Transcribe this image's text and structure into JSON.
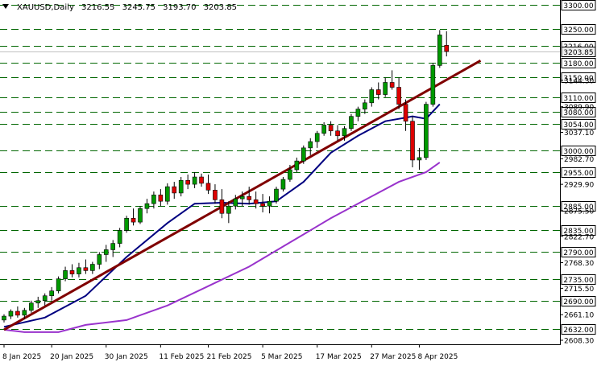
{
  "header": {
    "symbol": "XAUUSD,Daily",
    "open": "3216.55",
    "high": "3245.75",
    "low": "3193.70",
    "close": "3203.85"
  },
  "colors": {
    "bull": "#009900",
    "bear": "#dd0000",
    "ma_fast": "#000080",
    "ma_slow": "#9933cc",
    "trendline": "#800000",
    "level_line": "#006600",
    "grid": "#c0c0c0",
    "label_bg": "#ffffff"
  },
  "chart_data": {
    "type": "candlestick",
    "ylim": [
      2600,
      3310
    ],
    "y_ticks": [
      "2608.30",
      "2661.10",
      "2715.50",
      "2768.30",
      "2822.70",
      "2875.50",
      "2929.90",
      "2982.70",
      "3037.10",
      "3089.90",
      "3144.30"
    ],
    "level_labels": [
      "3300.00",
      "3250.00",
      "3216.00",
      "3180.00",
      "3150.00",
      "3110.00",
      "3080.00",
      "3054.00",
      "3000.00",
      "2955.00",
      "2885.00",
      "2835.00",
      "2790.00",
      "2735.00",
      "2690.00",
      "2632.00"
    ],
    "level_values": [
      3300,
      3250,
      3216,
      3180,
      3150,
      3110,
      3080,
      3054,
      3000,
      2955,
      2885,
      2835,
      2790,
      2735,
      2690,
      2632
    ],
    "current_price": "3203.85",
    "current_value": 3203.85,
    "x_labels": [
      {
        "i": 0,
        "text": "8 Jan 2025"
      },
      {
        "i": 7,
        "text": "20 Jan 2025"
      },
      {
        "i": 15,
        "text": "30 Jan 2025"
      },
      {
        "i": 23,
        "text": "11 Feb 2025"
      },
      {
        "i": 30,
        "text": "21 Feb 2025"
      },
      {
        "i": 38,
        "text": "5 Mar 2025"
      },
      {
        "i": 46,
        "text": "17 Mar 2025"
      },
      {
        "i": 54,
        "text": "27 Mar 2025"
      },
      {
        "i": 61,
        "text": "8 Apr 2025"
      }
    ],
    "candles": [
      [
        2650,
        2662,
        2645,
        2658
      ],
      [
        2658,
        2672,
        2652,
        2668
      ],
      [
        2668,
        2678,
        2655,
        2660
      ],
      [
        2660,
        2675,
        2652,
        2670
      ],
      [
        2670,
        2690,
        2665,
        2685
      ],
      [
        2685,
        2698,
        2675,
        2690
      ],
      [
        2690,
        2705,
        2680,
        2700
      ],
      [
        2700,
        2718,
        2690,
        2710
      ],
      [
        2710,
        2740,
        2705,
        2735
      ],
      [
        2735,
        2760,
        2730,
        2752
      ],
      [
        2752,
        2765,
        2738,
        2745
      ],
      [
        2745,
        2768,
        2738,
        2758
      ],
      [
        2758,
        2775,
        2745,
        2752
      ],
      [
        2752,
        2770,
        2745,
        2765
      ],
      [
        2765,
        2790,
        2755,
        2785
      ],
      [
        2785,
        2805,
        2770,
        2795
      ],
      [
        2795,
        2815,
        2780,
        2808
      ],
      [
        2808,
        2840,
        2800,
        2835
      ],
      [
        2835,
        2865,
        2830,
        2860
      ],
      [
        2860,
        2880,
        2845,
        2852
      ],
      [
        2852,
        2885,
        2848,
        2880
      ],
      [
        2880,
        2900,
        2870,
        2890
      ],
      [
        2890,
        2915,
        2880,
        2908
      ],
      [
        2908,
        2920,
        2885,
        2895
      ],
      [
        2895,
        2932,
        2888,
        2925
      ],
      [
        2925,
        2935,
        2900,
        2912
      ],
      [
        2912,
        2945,
        2905,
        2938
      ],
      [
        2938,
        2950,
        2920,
        2930
      ],
      [
        2930,
        2955,
        2922,
        2945
      ],
      [
        2945,
        2952,
        2925,
        2932
      ],
      [
        2932,
        2950,
        2910,
        2918
      ],
      [
        2918,
        2930,
        2890,
        2898
      ],
      [
        2898,
        2920,
        2860,
        2870
      ],
      [
        2870,
        2895,
        2850,
        2885
      ],
      [
        2885,
        2908,
        2878,
        2900
      ],
      [
        2900,
        2915,
        2885,
        2905
      ],
      [
        2905,
        2925,
        2888,
        2898
      ],
      [
        2898,
        2915,
        2880,
        2890
      ],
      [
        2890,
        2910,
        2872,
        2885
      ],
      [
        2885,
        2905,
        2870,
        2895
      ],
      [
        2895,
        2925,
        2890,
        2920
      ],
      [
        2920,
        2945,
        2915,
        2940
      ],
      [
        2940,
        2970,
        2935,
        2960
      ],
      [
        2960,
        2985,
        2955,
        2978
      ],
      [
        2978,
        3010,
        2972,
        3005
      ],
      [
        3005,
        3025,
        2990,
        3018
      ],
      [
        3018,
        3040,
        3005,
        3035
      ],
      [
        3035,
        3058,
        3030,
        3052
      ],
      [
        3052,
        3060,
        3030,
        3040
      ],
      [
        3040,
        3052,
        3020,
        3030
      ],
      [
        3030,
        3050,
        3020,
        3045
      ],
      [
        3045,
        3075,
        3040,
        3070
      ],
      [
        3070,
        3090,
        3060,
        3085
      ],
      [
        3085,
        3105,
        3075,
        3098
      ],
      [
        3098,
        3130,
        3090,
        3125
      ],
      [
        3125,
        3140,
        3105,
        3115
      ],
      [
        3115,
        3150,
        3110,
        3140
      ],
      [
        3140,
        3165,
        3125,
        3130
      ],
      [
        3130,
        3150,
        3085,
        3095
      ],
      [
        3095,
        3105,
        3040,
        3060
      ],
      [
        3060,
        3070,
        2965,
        2980
      ],
      [
        2980,
        3005,
        2960,
        2985
      ],
      [
        2985,
        3100,
        2980,
        3095
      ],
      [
        3095,
        3180,
        3090,
        3175
      ],
      [
        3175,
        3248,
        3170,
        3238
      ],
      [
        3216.55,
        3245.75,
        3193.7,
        3203.85
      ]
    ],
    "ma_fast": [
      [
        0,
        2636
      ],
      [
        6,
        2655
      ],
      [
        12,
        2700
      ],
      [
        18,
        2780
      ],
      [
        24,
        2850
      ],
      [
        28,
        2890
      ],
      [
        32,
        2892
      ],
      [
        36,
        2890
      ],
      [
        40,
        2895
      ],
      [
        44,
        2935
      ],
      [
        48,
        2995
      ],
      [
        52,
        3030
      ],
      [
        56,
        3060
      ],
      [
        60,
        3070
      ],
      [
        62,
        3065
      ],
      [
        63,
        3080
      ],
      [
        64,
        3095
      ]
    ],
    "ma_slow": [
      [
        0,
        2630
      ],
      [
        3,
        2625
      ],
      [
        8,
        2625
      ],
      [
        12,
        2640
      ],
      [
        18,
        2650
      ],
      [
        24,
        2680
      ],
      [
        30,
        2720
      ],
      [
        36,
        2760
      ],
      [
        42,
        2810
      ],
      [
        48,
        2860
      ],
      [
        54,
        2905
      ],
      [
        58,
        2935
      ],
      [
        62,
        2955
      ],
      [
        64,
        2975
      ]
    ],
    "trendline": [
      [
        0,
        2630
      ],
      [
        70,
        3185
      ]
    ]
  }
}
